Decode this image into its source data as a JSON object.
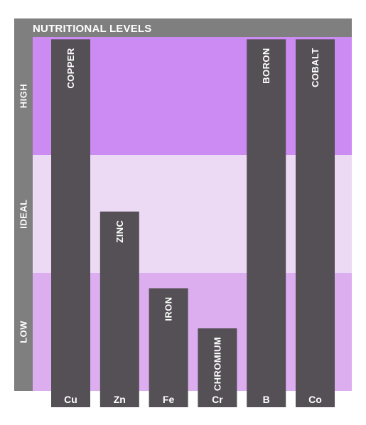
{
  "chart_data": {
    "type": "bar",
    "title": "NUTRITIONAL LEVELS",
    "ylim": [
      0,
      3
    ],
    "bands": [
      {
        "label": "LOW",
        "from": 0,
        "to": 1,
        "color": "#dcaef0"
      },
      {
        "label": "IDEAL",
        "from": 1,
        "to": 2,
        "color": "#ecd9f4"
      },
      {
        "label": "HIGH",
        "from": 2,
        "to": 3,
        "color": "#cc8bf3"
      }
    ],
    "categories": [
      "Cu",
      "Zn",
      "Fe",
      "Cr",
      "B",
      "Co"
    ],
    "labels": [
      "COPPER",
      "ZINC",
      "IRON",
      "CHROMIUM",
      "BORON",
      "COBALT"
    ],
    "values": [
      2.98,
      1.52,
      0.87,
      0.53,
      2.98,
      2.98
    ]
  },
  "colors": {
    "frame": "#7f7f7f",
    "bar": "#545055",
    "text": "#ffffff"
  }
}
